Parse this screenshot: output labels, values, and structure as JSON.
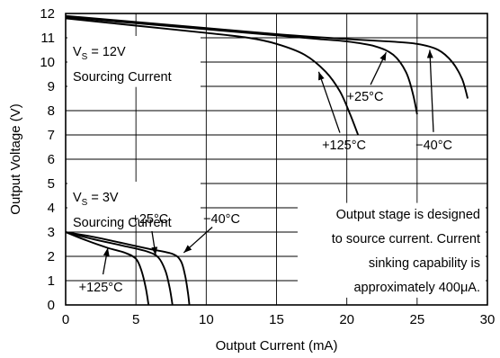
{
  "chart_data": {
    "type": "line",
    "xlabel": "Output Current (mA)",
    "ylabel": "Output Voltage (V)",
    "xlim": [
      0,
      30
    ],
    "ylim": [
      0,
      12
    ],
    "x_ticks": [
      "0",
      "5",
      "10",
      "15",
      "20",
      "25",
      "30"
    ],
    "y_ticks": [
      "0",
      "1",
      "2",
      "3",
      "4",
      "5",
      "6",
      "7",
      "8",
      "9",
      "10",
      "11",
      "12"
    ],
    "grid": true,
    "panels": [
      {
        "supply": "VS = 12V",
        "supply_main": "V",
        "supply_sub": "S",
        "supply_value": " = 12V",
        "label": "Sourcing Current",
        "series": [
          {
            "name": "+125°C",
            "x": [
              0,
              5,
              10,
              13,
              15,
              17,
              18.5,
              19.5,
              20.2,
              20.8
            ],
            "y": [
              11.8,
              11.5,
              11.2,
              11.0,
              10.75,
              10.3,
              9.6,
              8.8,
              7.9,
              7.0
            ]
          },
          {
            "name": "+25°C",
            "x": [
              0,
              5,
              10,
              15,
              18,
              20,
              22,
              23.3,
              24.2,
              24.7,
              25.0
            ],
            "y": [
              11.85,
              11.6,
              11.35,
              11.1,
              10.95,
              10.85,
              10.65,
              10.3,
              9.6,
              8.7,
              7.85
            ]
          },
          {
            "name": "−40°C",
            "x": [
              0,
              5,
              10,
              15,
              20,
              23,
              25,
              26.5,
              27.5,
              28.2,
              28.6
            ],
            "y": [
              11.9,
              11.65,
              11.4,
              11.15,
              10.95,
              10.85,
              10.75,
              10.5,
              10.0,
              9.3,
              8.5
            ]
          }
        ]
      },
      {
        "supply": "VS = 3V",
        "supply_main": "V",
        "supply_sub": "S",
        "supply_value": " = 3V",
        "label": "Sourcing Current",
        "series": [
          {
            "name": "+125°C",
            "x": [
              0,
              1.5,
              3,
              4.2,
              5.0,
              5.4,
              5.7,
              5.9
            ],
            "y": [
              3.0,
              2.65,
              2.35,
              2.15,
              1.9,
              1.4,
              0.7,
              0.0
            ]
          },
          {
            "name": "+25°C",
            "x": [
              0,
              2,
              4,
              5.8,
              6.6,
              7.1,
              7.4,
              7.6
            ],
            "y": [
              3.0,
              2.7,
              2.45,
              2.2,
              1.95,
              1.4,
              0.7,
              0.0
            ]
          },
          {
            "name": "−40°C",
            "x": [
              0,
              2,
              4,
              6,
              7.6,
              8.2,
              8.5,
              8.7,
              8.8
            ],
            "y": [
              3.0,
              2.8,
              2.55,
              2.3,
              2.1,
              1.8,
              1.2,
              0.5,
              0.0
            ]
          }
        ]
      }
    ],
    "note": [
      "Output stage is designed",
      "to source current. Current",
      "sinking capability is",
      "approximately 400μA."
    ],
    "annotations": [
      {
        "text": "+125°C",
        "tx": 19.8,
        "ty": 6.6,
        "ax": 18.0,
        "ay": 9.6
      },
      {
        "text": "+25°C",
        "tx": 21.3,
        "ty": 8.6,
        "ax": 22.8,
        "ay": 10.4
      },
      {
        "text": "−40°C",
        "tx": 26.2,
        "ty": 6.6,
        "ax": 25.9,
        "ay": 10.5
      },
      {
        "text": "+25°C",
        "tx": 6.0,
        "ty": 3.55,
        "ax": 6.4,
        "ay": 2.05
      },
      {
        "text": "−40°C",
        "tx": 11.1,
        "ty": 3.55,
        "ax": 8.4,
        "ay": 2.15
      },
      {
        "text": "+125°C",
        "tx": 2.5,
        "ty": 0.75,
        "ax": 3.0,
        "ay": 2.35
      }
    ]
  }
}
